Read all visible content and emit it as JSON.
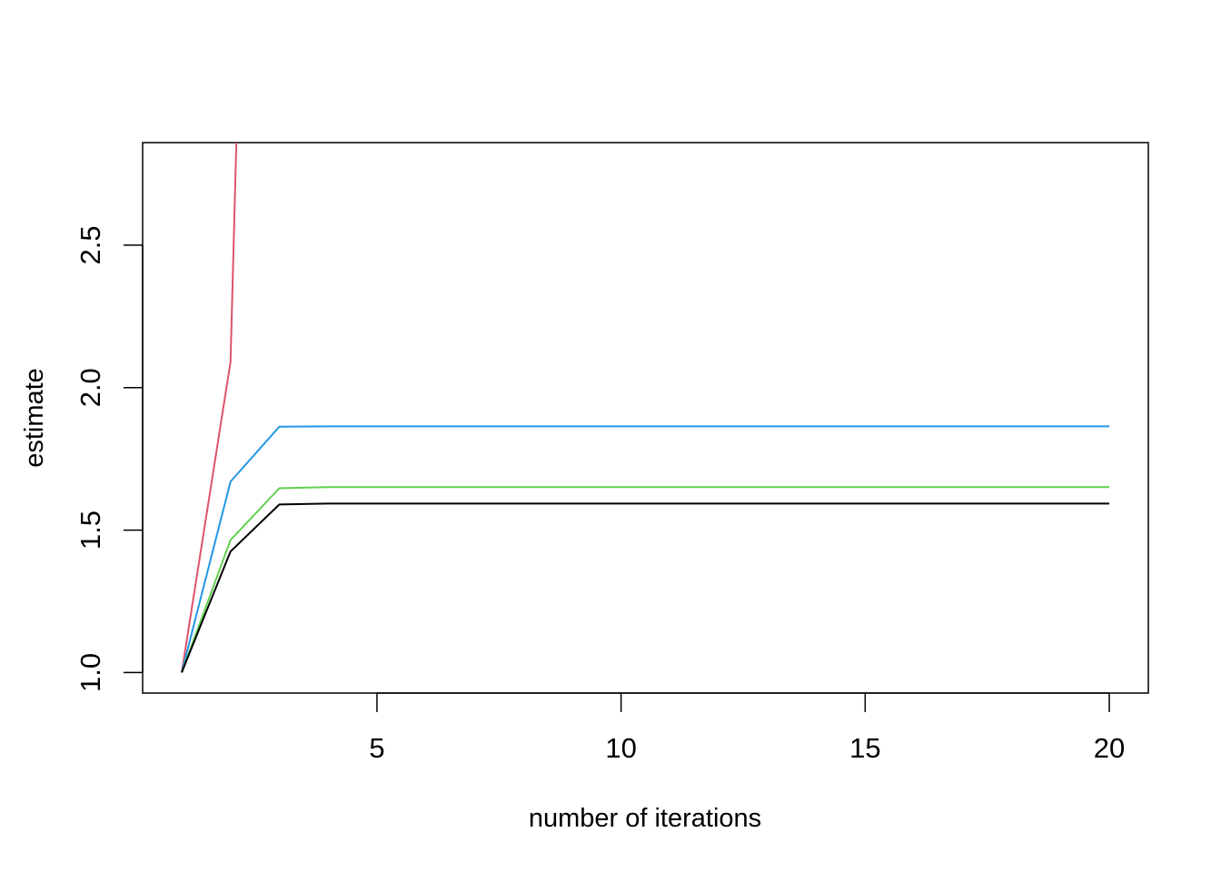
{
  "chart_data": {
    "type": "line",
    "title": "",
    "xlabel": "number of iterations",
    "ylabel": "estimate",
    "xlim": [
      0.2,
      20.8
    ],
    "ylim": [
      0.928,
      2.86
    ],
    "x_ticks": [
      5,
      10,
      15,
      20
    ],
    "y_ticks": [
      1.0,
      1.5,
      2.0,
      2.5
    ],
    "x_tick_labels": [
      "5",
      "10",
      "15",
      "20"
    ],
    "y_tick_labels": [
      "1.0",
      "1.5",
      "2.0",
      "2.5"
    ],
    "grid": false,
    "legend": "none",
    "series": [
      {
        "color": "#DF536B",
        "x": [
          1,
          2,
          2.12
        ],
        "y": [
          1.0,
          2.09,
          2.86
        ]
      },
      {
        "color": "#2297E6",
        "x": [
          1,
          2,
          3,
          4,
          5,
          6,
          7,
          8,
          9,
          10,
          11,
          12,
          13,
          14,
          15,
          16,
          17,
          18,
          19,
          20
        ],
        "y": [
          1.0,
          1.67,
          1.863,
          1.864,
          1.864,
          1.864,
          1.864,
          1.864,
          1.864,
          1.864,
          1.864,
          1.864,
          1.864,
          1.864,
          1.864,
          1.864,
          1.864,
          1.864,
          1.864,
          1.864
        ]
      },
      {
        "color": "#61D04F",
        "x": [
          1,
          2,
          3,
          4,
          5,
          6,
          7,
          8,
          9,
          10,
          11,
          12,
          13,
          14,
          15,
          16,
          17,
          18,
          19,
          20
        ],
        "y": [
          1.0,
          1.465,
          1.647,
          1.651,
          1.651,
          1.651,
          1.651,
          1.651,
          1.651,
          1.651,
          1.651,
          1.651,
          1.651,
          1.651,
          1.651,
          1.651,
          1.651,
          1.651,
          1.651,
          1.651
        ]
      },
      {
        "color": "#000000",
        "x": [
          1,
          2,
          3,
          4,
          5,
          6,
          7,
          8,
          9,
          10,
          11,
          12,
          13,
          14,
          15,
          16,
          17,
          18,
          19,
          20
        ],
        "y": [
          1.0,
          1.425,
          1.59,
          1.593,
          1.593,
          1.593,
          1.593,
          1.593,
          1.593,
          1.593,
          1.593,
          1.593,
          1.593,
          1.593,
          1.593,
          1.593,
          1.593,
          1.593,
          1.593,
          1.593
        ]
      }
    ]
  }
}
